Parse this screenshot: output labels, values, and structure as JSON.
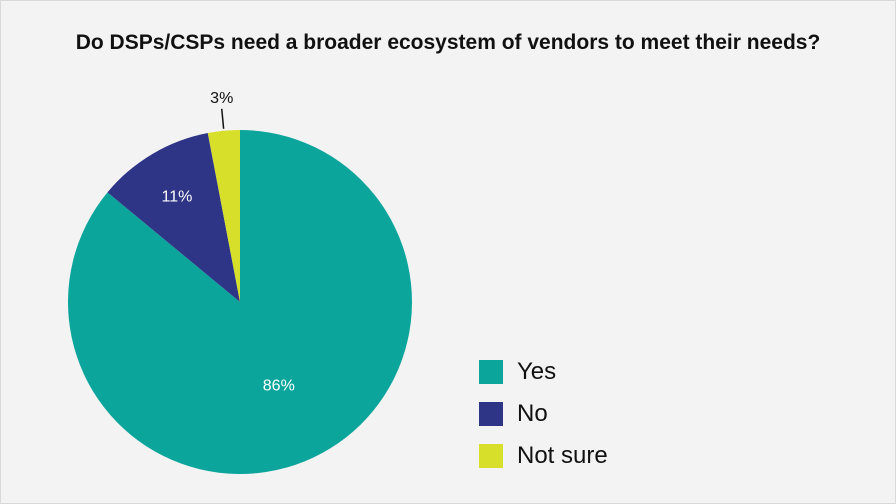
{
  "colors": {
    "background": "#f3f3f3",
    "yes": "#0ca59c",
    "no": "#2e3587",
    "not_sure": "#d7df2b"
  },
  "chart_data": {
    "type": "pie",
    "title": "Do DSPs/CSPs need a broader ecosystem of vendors to meet their needs?",
    "slices": [
      {
        "label": "Yes",
        "value": 86,
        "display": "86%",
        "color": "#0ca59c",
        "label_position": "inside",
        "label_color": "#ffffff"
      },
      {
        "label": "No",
        "value": 11,
        "display": "11%",
        "color": "#2e3587",
        "label_position": "inside",
        "label_color": "#ffffff"
      },
      {
        "label": "Not sure",
        "value": 3,
        "display": "3%",
        "color": "#d7df2b",
        "label_position": "outside",
        "label_color": "#111111"
      }
    ],
    "start": "top",
    "direction": "clockwise",
    "legend_position": "bottom-right"
  }
}
